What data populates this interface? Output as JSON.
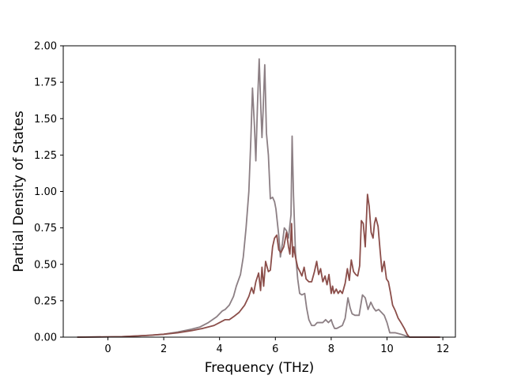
{
  "chart_data": {
    "type": "line",
    "title": "",
    "xlabel": "Frequency (THz)",
    "ylabel": "Partial Density of States",
    "xlim": [
      -1.6,
      12.45
    ],
    "ylim": [
      0.0,
      2.0
    ],
    "xticks": [
      0,
      2,
      4,
      6,
      8,
      10,
      12
    ],
    "xtick_labels": [
      "0",
      "2",
      "4",
      "6",
      "8",
      "10",
      "12"
    ],
    "yticks": [
      0.0,
      0.25,
      0.5,
      0.75,
      1.0,
      1.25,
      1.5,
      1.75,
      2.0
    ],
    "ytick_labels": [
      "0.00",
      "0.25",
      "0.50",
      "0.75",
      "1.00",
      "1.25",
      "1.50",
      "1.75",
      "2.00"
    ],
    "grid": false,
    "series": [
      {
        "color": "#8c7f84",
        "x": [
          -1.1,
          0.5,
          1.0,
          1.5,
          2.0,
          2.5,
          3.0,
          3.3,
          3.6,
          3.9,
          4.1,
          4.2,
          4.35,
          4.5,
          4.6,
          4.75,
          4.85,
          4.95,
          5.05,
          5.12,
          5.18,
          5.25,
          5.3,
          5.36,
          5.42,
          5.47,
          5.52,
          5.56,
          5.62,
          5.68,
          5.75,
          5.82,
          5.9,
          5.97,
          6.02,
          6.07,
          6.12,
          6.18,
          6.25,
          6.32,
          6.4,
          6.47,
          6.52,
          6.56,
          6.6,
          6.65,
          6.72,
          6.8,
          6.87,
          6.95,
          7.05,
          7.12,
          7.2,
          7.3,
          7.4,
          7.5,
          7.6,
          7.7,
          7.8,
          7.9,
          8.0,
          8.05,
          8.12,
          8.2,
          8.3,
          8.4,
          8.5,
          8.6,
          8.68,
          8.75,
          8.85,
          9.0,
          9.12,
          9.22,
          9.32,
          9.42,
          9.52,
          9.6,
          9.7,
          9.8,
          9.9,
          10.0,
          10.1,
          10.3,
          10.5,
          10.65,
          10.75,
          10.82,
          11.2,
          11.9
        ],
        "values": [
          0.0,
          0.003,
          0.008,
          0.013,
          0.02,
          0.035,
          0.055,
          0.07,
          0.1,
          0.14,
          0.18,
          0.19,
          0.22,
          0.28,
          0.35,
          0.43,
          0.55,
          0.75,
          1.0,
          1.35,
          1.71,
          1.45,
          1.21,
          1.6,
          1.91,
          1.62,
          1.37,
          1.55,
          1.87,
          1.4,
          1.25,
          0.95,
          0.96,
          0.93,
          0.88,
          0.79,
          0.7,
          0.55,
          0.64,
          0.75,
          0.73,
          0.68,
          0.77,
          0.84,
          1.38,
          0.97,
          0.58,
          0.4,
          0.3,
          0.29,
          0.3,
          0.2,
          0.12,
          0.08,
          0.08,
          0.1,
          0.1,
          0.1,
          0.12,
          0.1,
          0.12,
          0.09,
          0.06,
          0.06,
          0.07,
          0.08,
          0.13,
          0.27,
          0.2,
          0.16,
          0.15,
          0.15,
          0.29,
          0.27,
          0.19,
          0.24,
          0.2,
          0.18,
          0.19,
          0.17,
          0.15,
          0.1,
          0.03,
          0.03,
          0.02,
          0.01,
          0.005,
          0.0,
          0.0,
          0.0
        ]
      },
      {
        "color": "#8b4e4a",
        "x": [
          -1.1,
          0.5,
          1.0,
          1.5,
          2.0,
          2.5,
          3.0,
          3.4,
          3.8,
          4.0,
          4.2,
          4.35,
          4.5,
          4.7,
          4.9,
          5.05,
          5.15,
          5.22,
          5.3,
          5.4,
          5.47,
          5.52,
          5.58,
          5.65,
          5.75,
          5.82,
          5.9,
          5.97,
          6.05,
          6.12,
          6.2,
          6.3,
          6.4,
          6.47,
          6.52,
          6.58,
          6.62,
          6.66,
          6.72,
          6.8,
          6.88,
          6.95,
          7.03,
          7.1,
          7.2,
          7.3,
          7.4,
          7.48,
          7.55,
          7.62,
          7.7,
          7.78,
          7.85,
          7.92,
          8.0,
          8.05,
          8.1,
          8.18,
          8.25,
          8.32,
          8.4,
          8.5,
          8.58,
          8.65,
          8.72,
          8.8,
          8.88,
          8.95,
          9.02,
          9.08,
          9.15,
          9.22,
          9.3,
          9.36,
          9.43,
          9.5,
          9.55,
          9.6,
          9.68,
          9.75,
          9.82,
          9.9,
          9.98,
          10.05,
          10.12,
          10.2,
          10.3,
          10.4,
          10.5,
          10.62,
          10.72,
          10.8,
          11.2,
          11.9
        ],
        "values": [
          0.0,
          0.003,
          0.008,
          0.013,
          0.02,
          0.03,
          0.045,
          0.06,
          0.08,
          0.1,
          0.12,
          0.12,
          0.14,
          0.17,
          0.22,
          0.28,
          0.34,
          0.3,
          0.38,
          0.44,
          0.32,
          0.48,
          0.35,
          0.52,
          0.45,
          0.46,
          0.62,
          0.68,
          0.7,
          0.6,
          0.58,
          0.62,
          0.72,
          0.62,
          0.57,
          0.78,
          0.55,
          0.62,
          0.55,
          0.48,
          0.45,
          0.42,
          0.48,
          0.4,
          0.38,
          0.38,
          0.45,
          0.52,
          0.43,
          0.47,
          0.38,
          0.42,
          0.36,
          0.43,
          0.3,
          0.35,
          0.3,
          0.33,
          0.3,
          0.32,
          0.3,
          0.37,
          0.47,
          0.39,
          0.53,
          0.45,
          0.43,
          0.42,
          0.49,
          0.8,
          0.78,
          0.62,
          0.98,
          0.9,
          0.72,
          0.68,
          0.78,
          0.82,
          0.76,
          0.6,
          0.45,
          0.52,
          0.4,
          0.38,
          0.31,
          0.22,
          0.18,
          0.13,
          0.1,
          0.06,
          0.02,
          0.0,
          0.0,
          0.0
        ]
      }
    ]
  }
}
